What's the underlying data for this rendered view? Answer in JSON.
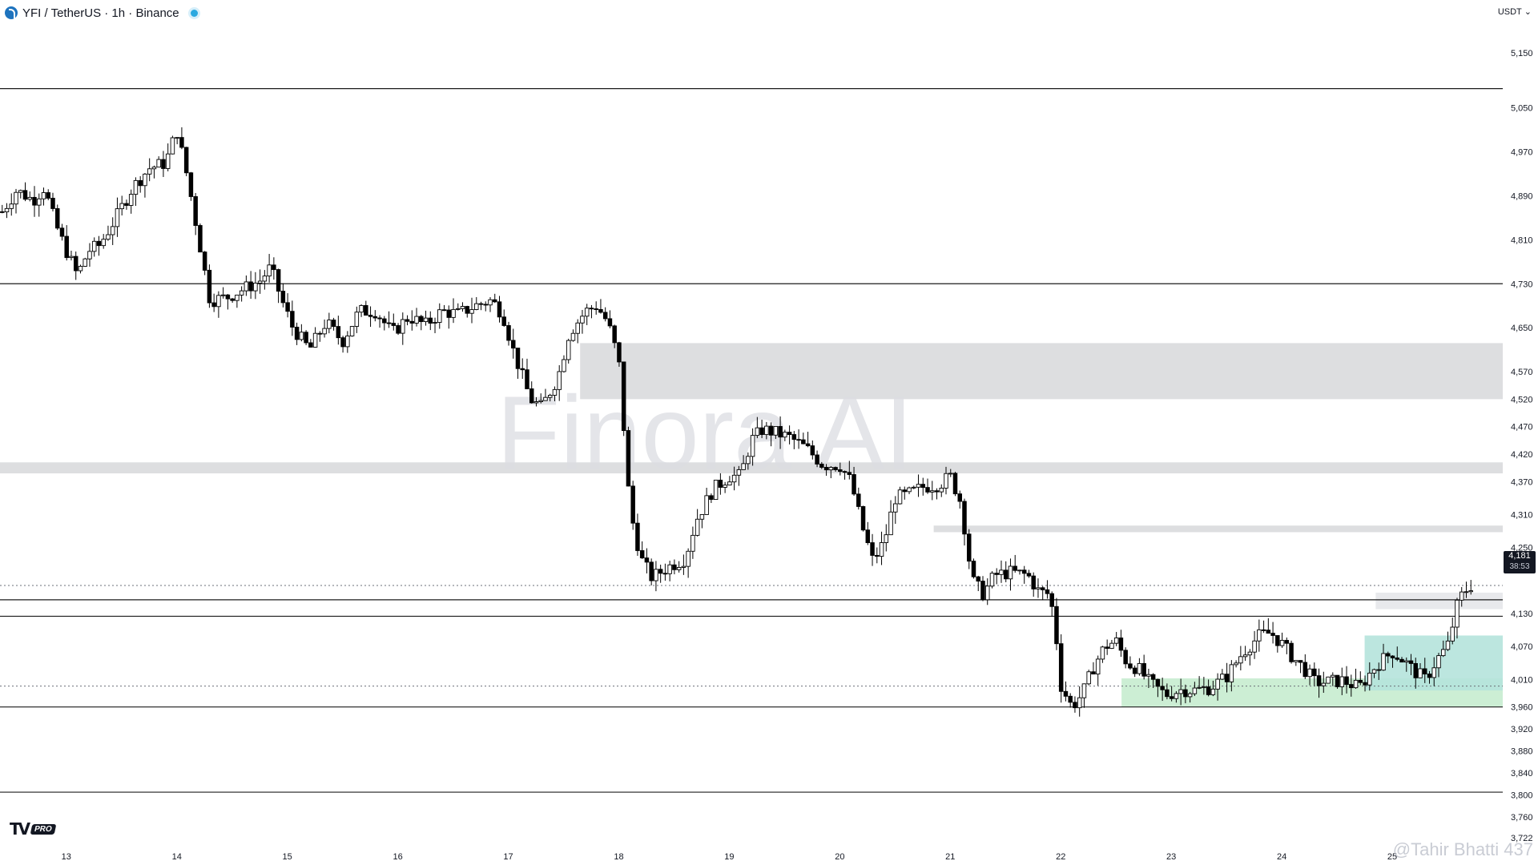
{
  "header": {
    "symbol": "YFI / TetherUS · 1h · Binance"
  },
  "currency": {
    "label": "USDT",
    "chevron": "chevron-down-icon"
  },
  "branding": {
    "logo": "TV",
    "badge": "PRO"
  },
  "watermark": {
    "center": "Finora AI",
    "bottom_right": "@Tahir Bhatti 437"
  },
  "last_price": {
    "value": "4,181",
    "countdown": "38:53"
  },
  "colors": {
    "up": "#ffffff",
    "down": "#000000",
    "zone_grey": "#d9dadd",
    "zone_green": "#c7eccf",
    "zone_teal": "#b5e3dc"
  },
  "chart_data": {
    "type": "candlestick",
    "ylim": [
      3722,
      5220
    ],
    "price_ticks": [
      "5,150",
      "5,050",
      "4,970",
      "4,890",
      "4,810",
      "4,730",
      "4,650",
      "4,570",
      "4,520",
      "4,470",
      "4,420",
      "4,370",
      "4,310",
      "4,250",
      "4,130",
      "4,070",
      "4,010",
      "3,960",
      "3,920",
      "3,880",
      "3,840",
      "3,800",
      "3,760",
      "3,722"
    ],
    "date_ticks": [
      "13",
      "14",
      "15",
      "16",
      "17",
      "18",
      "19",
      "20",
      "21",
      "22",
      "23",
      "24",
      "25"
    ],
    "horizontal_levels": [
      5085,
      4730,
      4155,
      4125,
      3960,
      3805
    ],
    "dotted_levels": [
      4181,
      3998
    ],
    "zones": [
      {
        "kind": "grey",
        "from": 4520,
        "to": 4622,
        "start_day": 17.65
      },
      {
        "kind": "grey",
        "from": 4385,
        "to": 4405,
        "start_day": 12.4
      },
      {
        "kind": "grey",
        "from": 4278,
        "to": 4290,
        "start_day": 20.85
      },
      {
        "kind": "green",
        "from": 3960,
        "to": 4012,
        "start_day": 22.55
      },
      {
        "kind": "teal",
        "from": 3990,
        "to": 4090,
        "start_day": 24.75
      },
      {
        "kind": "lightgrey",
        "from": 4138,
        "to": 4168,
        "start_day": 24.85
      }
    ],
    "path": [
      [
        12.4,
        4855
      ],
      [
        12.55,
        4900
      ],
      [
        12.7,
        4882
      ],
      [
        12.8,
        4905
      ],
      [
        12.9,
        4840
      ],
      [
        13.0,
        4790
      ],
      [
        13.1,
        4745
      ],
      [
        13.2,
        4790
      ],
      [
        13.3,
        4800
      ],
      [
        13.45,
        4850
      ],
      [
        13.6,
        4905
      ],
      [
        13.75,
        4940
      ],
      [
        13.9,
        4950
      ],
      [
        14.0,
        5010
      ],
      [
        14.1,
        4920
      ],
      [
        14.2,
        4810
      ],
      [
        14.3,
        4700
      ],
      [
        14.45,
        4705
      ],
      [
        14.6,
        4720
      ],
      [
        14.75,
        4735
      ],
      [
        14.85,
        4760
      ],
      [
        14.95,
        4700
      ],
      [
        15.05,
        4650
      ],
      [
        15.2,
        4610
      ],
      [
        15.35,
        4660
      ],
      [
        15.5,
        4625
      ],
      [
        15.65,
        4680
      ],
      [
        15.8,
        4680
      ],
      [
        15.95,
        4640
      ],
      [
        16.1,
        4670
      ],
      [
        16.25,
        4655
      ],
      [
        16.4,
        4680
      ],
      [
        16.55,
        4675
      ],
      [
        16.7,
        4690
      ],
      [
        16.85,
        4700
      ],
      [
        16.95,
        4675
      ],
      [
        17.05,
        4605
      ],
      [
        17.2,
        4520
      ],
      [
        17.3,
        4505
      ],
      [
        17.45,
        4560
      ],
      [
        17.55,
        4640
      ],
      [
        17.7,
        4680
      ],
      [
        17.8,
        4690
      ],
      [
        17.9,
        4660
      ],
      [
        18.0,
        4590
      ],
      [
        18.1,
        4320
      ],
      [
        18.2,
        4230
      ],
      [
        18.3,
        4195
      ],
      [
        18.45,
        4215
      ],
      [
        18.6,
        4230
      ],
      [
        18.7,
        4300
      ],
      [
        18.85,
        4355
      ],
      [
        19.0,
        4380
      ],
      [
        19.1,
        4380
      ],
      [
        19.2,
        4445
      ],
      [
        19.3,
        4465
      ],
      [
        19.4,
        4460
      ],
      [
        19.55,
        4450
      ],
      [
        19.7,
        4430
      ],
      [
        19.85,
        4400
      ],
      [
        20.0,
        4400
      ],
      [
        20.1,
        4370
      ],
      [
        20.2,
        4290
      ],
      [
        20.3,
        4225
      ],
      [
        20.4,
        4260
      ],
      [
        20.5,
        4340
      ],
      [
        20.6,
        4345
      ],
      [
        20.75,
        4360
      ],
      [
        20.9,
        4365
      ],
      [
        21.0,
        4380
      ],
      [
        21.1,
        4330
      ],
      [
        21.15,
        4255
      ],
      [
        21.2,
        4190
      ],
      [
        21.3,
        4165
      ],
      [
        21.4,
        4200
      ],
      [
        21.55,
        4205
      ],
      [
        21.7,
        4200
      ],
      [
        21.8,
        4170
      ],
      [
        21.9,
        4165
      ],
      [
        21.95,
        4105
      ],
      [
        22.0,
        4000
      ],
      [
        22.1,
        3960
      ],
      [
        22.2,
        3985
      ],
      [
        22.3,
        4035
      ],
      [
        22.4,
        4070
      ],
      [
        22.5,
        4080
      ],
      [
        22.6,
        4040
      ],
      [
        22.7,
        4030
      ],
      [
        22.8,
        4005
      ],
      [
        22.95,
        3982
      ],
      [
        23.1,
        3992
      ],
      [
        23.2,
        3990
      ],
      [
        23.35,
        3995
      ],
      [
        23.5,
        4015
      ],
      [
        23.65,
        4060
      ],
      [
        23.8,
        4090
      ],
      [
        23.9,
        4095
      ],
      [
        24.0,
        4075
      ],
      [
        24.1,
        4050
      ],
      [
        24.2,
        4030
      ],
      [
        24.3,
        4005
      ],
      [
        24.4,
        4005
      ],
      [
        24.55,
        4008
      ],
      [
        24.7,
        3995
      ],
      [
        24.85,
        4035
      ],
      [
        25.0,
        4060
      ],
      [
        25.1,
        4045
      ],
      [
        25.2,
        4025
      ],
      [
        25.3,
        4010
      ],
      [
        25.4,
        4045
      ],
      [
        25.5,
        4070
      ],
      [
        25.6,
        4155
      ],
      [
        25.7,
        4181
      ]
    ]
  }
}
